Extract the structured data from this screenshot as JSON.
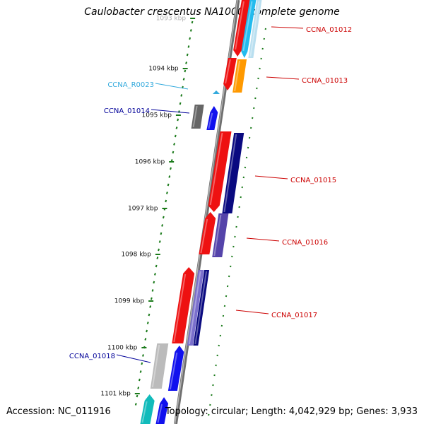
{
  "title": "Caulobacter crescentus NA1000, complete genome",
  "footer": {
    "accession": "Accession: NC_011916",
    "topology": "Topology: circular; Length: 4,042,929 bp; Genes: 3,933"
  },
  "ticks": [
    {
      "label": "1093 kbp",
      "faded": true
    },
    {
      "label": "1094 kbp"
    },
    {
      "label": "1095 kbp"
    },
    {
      "label": "1096 kbp"
    },
    {
      "label": "1097 kbp"
    },
    {
      "label": "1098 kbp"
    },
    {
      "label": "1099 kbp"
    },
    {
      "label": "1100 kbp"
    },
    {
      "label": "1101 kbp"
    }
  ],
  "gene_labels": [
    {
      "text": "CCNA_01012",
      "color": "#cc0000"
    },
    {
      "text": "CCNA_01013",
      "color": "#cc0000"
    },
    {
      "text": "CCNA_R0023",
      "color": "#33aadd"
    },
    {
      "text": "CCNA_01014",
      "color": "#000099"
    },
    {
      "text": "CCNA_01015",
      "color": "#cc0000"
    },
    {
      "text": "CCNA_01016",
      "color": "#cc0000"
    },
    {
      "text": "CCNA_01017",
      "color": "#cc0000"
    },
    {
      "text": "CCNA_01018",
      "color": "#000099"
    }
  ],
  "colors": {
    "backbone": "#8a8a8a",
    "ticks": "#1a7a1a",
    "red": "#ee1111",
    "cyan": "#22bbee",
    "orange": "#ff9900",
    "blue": "#1111ee",
    "navy": "#0a0a80",
    "slate": "#5544aa",
    "dark_gray": "#666666",
    "light_gray": "#bbbbbb",
    "teal": "#11bbbb"
  }
}
